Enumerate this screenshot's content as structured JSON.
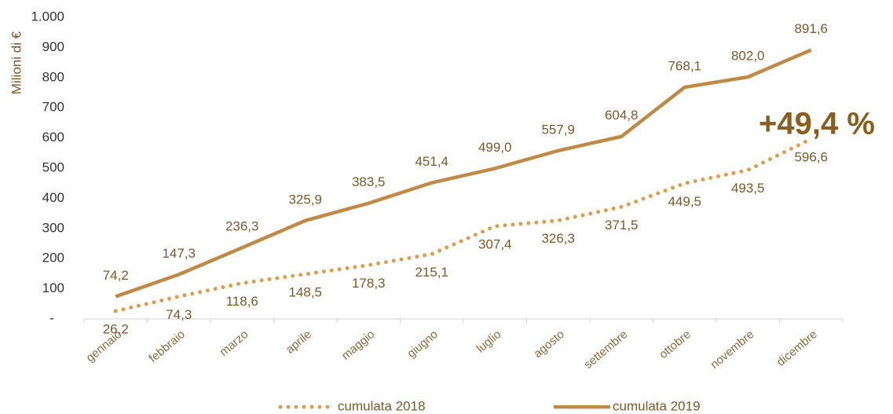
{
  "chart_data": {
    "type": "line",
    "ylabel": "Milioni di €",
    "annotation": "+49,4 %",
    "categories": [
      "gennaio",
      "febbraio",
      "marzo",
      "aprile",
      "maggio",
      "giugno",
      "luglio",
      "agosto",
      "settembre",
      "ottobre",
      "novembre",
      "dicembre"
    ],
    "series": [
      {
        "name": "cumulata 2018",
        "color": "#dc9e4e",
        "style": "dotted",
        "values": [
          26.2,
          74.3,
          118.6,
          148.5,
          178.3,
          215.1,
          307.4,
          326.3,
          371.5,
          449.5,
          493.5,
          596.6
        ],
        "value_labels": [
          "26,2",
          "74,3",
          "118,6",
          "148,5",
          "178,3",
          "215,1",
          "307,4",
          "326,3",
          "371,5",
          "449,5",
          "493,5",
          "596,6"
        ]
      },
      {
        "name": "cumulata 2019",
        "color": "#bf8a46",
        "style": "solid",
        "values": [
          74.2,
          147.3,
          236.3,
          325.9,
          383.5,
          451.4,
          499.0,
          557.9,
          604.8,
          768.1,
          802.0,
          891.6
        ],
        "value_labels": [
          "74,2",
          "147,3",
          "236,3",
          "325,9",
          "383,5",
          "451,4",
          "499,0",
          "557,9",
          "604,8",
          "768,1",
          "802,0",
          "891,6"
        ]
      }
    ],
    "ylim": [
      0,
      1000
    ],
    "yticks": [
      {
        "value": 0,
        "label": "-"
      },
      100,
      200,
      300,
      400,
      500,
      600,
      700,
      800,
      900,
      {
        "value": 1000,
        "label": "1.000"
      }
    ]
  }
}
